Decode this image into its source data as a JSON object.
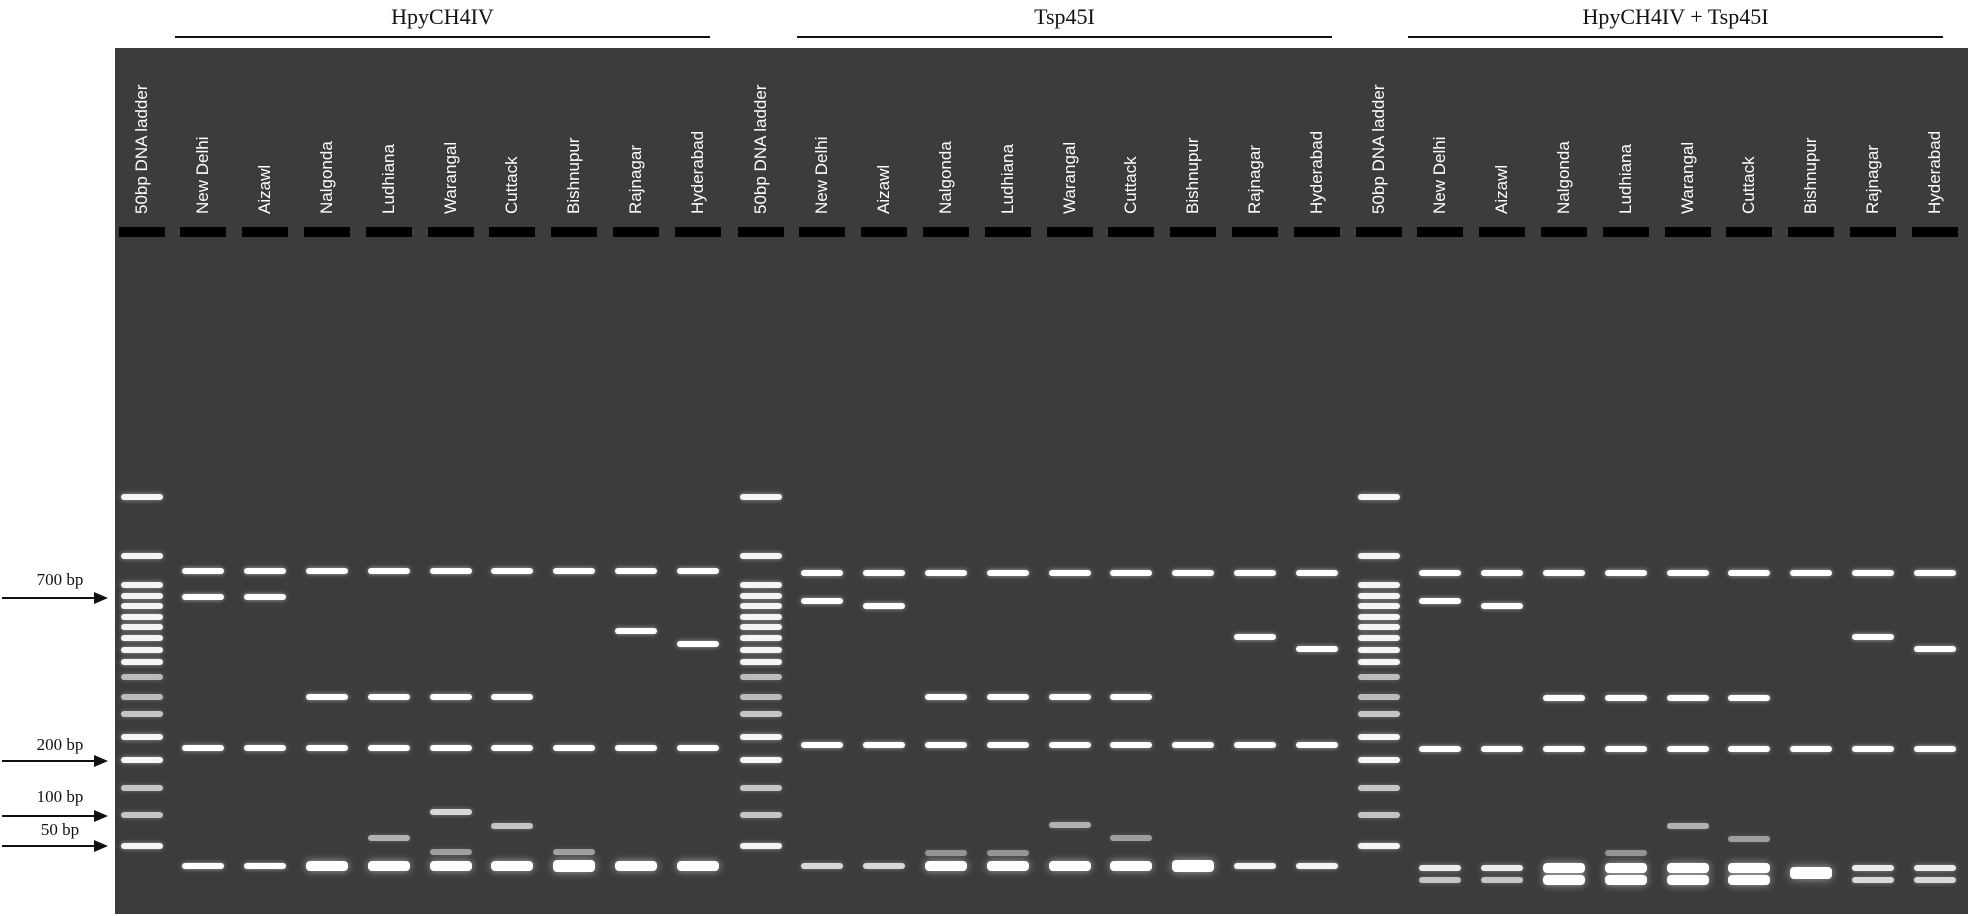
{
  "groups": [
    {
      "title": "HpyCH4IV"
    },
    {
      "title": "Tsp45I"
    },
    {
      "title": "HpyCH4IV + Tsp45I"
    }
  ],
  "lanes": [
    "50bp DNA ladder",
    "New Delhi",
    "Aizawl",
    "Nalgonda",
    "Ludhiana",
    "Warangal",
    "Cuttack",
    "Bishnupur",
    "Rajnagar",
    "Hyderabad",
    "50bp DNA ladder",
    "New Delhi",
    "Aizawl",
    "Nalgonda",
    "Ludhiana",
    "Warangal",
    "Cuttack",
    "Bishnupur",
    "Rajnagar",
    "Hyderabad",
    "50bp DNA ladder",
    "New Delhi",
    "Aizawl",
    "Nalgonda",
    "Ludhiana",
    "Warangal",
    "Cuttack",
    "Bishnupur",
    "Rajnagar",
    "Hyderabad"
  ],
  "markers": [
    {
      "label": "700 bp"
    },
    {
      "label": "200 bp"
    },
    {
      "label": "100 bp"
    },
    {
      "label": "50 bp"
    }
  ],
  "colors": {
    "gel": "#3c3c3c",
    "band": "#ffffff",
    "well": "#000000"
  }
}
